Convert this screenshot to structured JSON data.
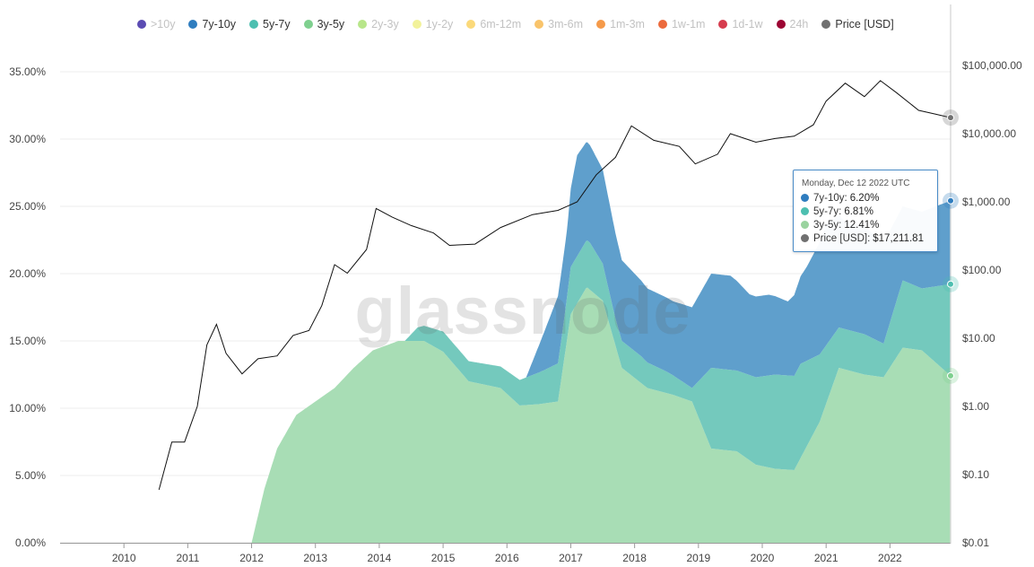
{
  "legend": [
    {
      "label": ">10y",
      "color": "#5b4cb3",
      "active": false
    },
    {
      "label": "7y-10y",
      "color": "#2f7dbf",
      "active": true
    },
    {
      "label": "5y-7y",
      "color": "#4dbfb0",
      "active": true
    },
    {
      "label": "3y-5y",
      "color": "#7fd08f",
      "active": true
    },
    {
      "label": "2y-3y",
      "color": "#b8e68a",
      "active": false
    },
    {
      "label": "1y-2y",
      "color": "#f2f29a",
      "active": false
    },
    {
      "label": "6m-12m",
      "color": "#fbd97a",
      "active": false
    },
    {
      "label": "3m-6m",
      "color": "#f9c46b",
      "active": false
    },
    {
      "label": "1m-3m",
      "color": "#f59a4a",
      "active": false
    },
    {
      "label": "1w-1m",
      "color": "#ec6a3c",
      "active": false
    },
    {
      "label": "1d-1w",
      "color": "#d63c4e",
      "active": false
    },
    {
      "label": "24h",
      "color": "#9c0533",
      "active": false
    },
    {
      "label": "Price [USD]",
      "color": "#707070",
      "active": true
    }
  ],
  "tooltip": {
    "date": "Monday, Dec 12 2022 UTC",
    "rows": [
      {
        "label": "7y-10y",
        "value": "6.20%",
        "color": "#2f7dbf"
      },
      {
        "label": "5y-7y",
        "value": "6.81%",
        "color": "#4dbfb0"
      },
      {
        "label": "3y-5y",
        "value": "12.41%",
        "color": "#9ad39f"
      },
      {
        "label": "Price [USD]",
        "value": "$17,211.81",
        "color": "#707070"
      }
    ]
  },
  "watermark": "glassnode",
  "chart_data": {
    "type": "area",
    "stacked": true,
    "x_ticks": [
      "2010",
      "2011",
      "2012",
      "2013",
      "2014",
      "2015",
      "2016",
      "2017",
      "2018",
      "2019",
      "2020",
      "2021",
      "2022"
    ],
    "y_left_ticks": [
      "0.00%",
      "5.00%",
      "10.00%",
      "15.00%",
      "20.00%",
      "25.00%",
      "30.00%",
      "35.00%"
    ],
    "y_left_range": [
      0,
      35
    ],
    "y_right_ticks": [
      "$0.01",
      "$0.10",
      "$1.00",
      "$10.00",
      "$100.00",
      "$1,000.00",
      "$10,000.00",
      "$100,000.00"
    ],
    "y_right_range": [
      0.01,
      100000
    ],
    "y_right_scale": "log",
    "legend_position": "top",
    "series": [
      {
        "name": "3y-5y",
        "color": "#a8ddb5",
        "x": [
          2012.0,
          2012.2,
          2012.4,
          2012.7,
          2013.0,
          2013.3,
          2013.6,
          2013.9,
          2014.3,
          2014.7,
          2015.0,
          2015.4,
          2015.9,
          2016.2,
          2016.5,
          2016.8,
          2017.0,
          2017.25,
          2017.5,
          2017.8,
          2018.2,
          2018.6,
          2018.9,
          2019.2,
          2019.6,
          2019.9,
          2020.2,
          2020.5,
          2020.9,
          2021.2,
          2021.6,
          2021.9,
          2022.2,
          2022.5,
          2022.95
        ],
        "values": [
          0,
          4,
          7,
          9.5,
          10.5,
          11.5,
          13,
          14.3,
          15,
          15,
          14.2,
          12,
          11.5,
          10.2,
          10.3,
          10.5,
          17,
          19,
          18,
          13,
          11.5,
          11,
          10.5,
          7,
          6.8,
          5.8,
          5.5,
          5.4,
          9,
          13,
          12.5,
          12.3,
          14.5,
          14.3,
          12.41
        ]
      },
      {
        "name": "5y-7y",
        "color": "#74c9bd",
        "x": [
          2014.4,
          2014.6,
          2015.0,
          2015.4,
          2015.9,
          2016.2,
          2016.6,
          2016.9,
          2017.0,
          2017.3,
          2017.7,
          2018.1,
          2018.5,
          2018.9,
          2019.2,
          2019.6,
          2019.9,
          2020.2,
          2020.6,
          2020.9,
          2021.2,
          2021.6,
          2021.9,
          2022.2,
          2022.5,
          2022.95
        ],
        "values": [
          0,
          1,
          1.5,
          1.5,
          1.6,
          1.9,
          2.5,
          3,
          3.5,
          3.5,
          2,
          2,
          1.6,
          1,
          6,
          6,
          6.5,
          7,
          7,
          5,
          3,
          3,
          2.5,
          5,
          4.6,
          6.81
        ]
      },
      {
        "name": "7y-10y",
        "color": "#5f9fcc",
        "x": [
          2016.3,
          2016.5,
          2016.8,
          2016.95,
          2017.1,
          2017.5,
          2017.8,
          2018.2,
          2018.6,
          2018.9,
          2019.2,
          2019.5,
          2019.8,
          2020.1,
          2020.4,
          2020.7,
          2021.0,
          2021.3,
          2021.6,
          2021.9,
          2022.2,
          2022.5,
          2022.95
        ],
        "values": [
          0,
          2,
          5,
          5,
          7.5,
          7,
          6,
          5.5,
          5.5,
          6,
          7,
          7,
          6,
          6,
          5.5,
          7,
          9,
          8,
          8,
          7.5,
          5.5,
          5.7,
          6.2
        ]
      }
    ],
    "price": {
      "name": "Price [USD]",
      "color": "#111111",
      "x": [
        2010.55,
        2010.75,
        2010.95,
        2011.15,
        2011.3,
        2011.45,
        2011.6,
        2011.85,
        2012.1,
        2012.4,
        2012.65,
        2012.9,
        2013.1,
        2013.3,
        2013.5,
        2013.8,
        2013.95,
        2014.2,
        2014.5,
        2014.85,
        2015.1,
        2015.5,
        2015.9,
        2016.4,
        2016.8,
        2017.1,
        2017.4,
        2017.7,
        2017.95,
        2018.3,
        2018.7,
        2018.95,
        2019.3,
        2019.5,
        2019.9,
        2020.2,
        2020.5,
        2020.8,
        2021.0,
        2021.3,
        2021.6,
        2021.85,
        2022.1,
        2022.45,
        2022.7,
        2022.95
      ],
      "values": [
        0.06,
        0.3,
        0.3,
        1.0,
        8,
        16,
        6,
        3,
        5,
        5.5,
        11,
        13,
        30,
        120,
        90,
        200,
        800,
        600,
        450,
        350,
        230,
        240,
        420,
        650,
        750,
        1000,
        2500,
        4500,
        13000,
        8000,
        6500,
        3600,
        5000,
        10000,
        7500,
        8500,
        9200,
        13500,
        30000,
        55000,
        35000,
        60000,
        40000,
        22000,
        19500,
        17211.81
      ]
    }
  }
}
